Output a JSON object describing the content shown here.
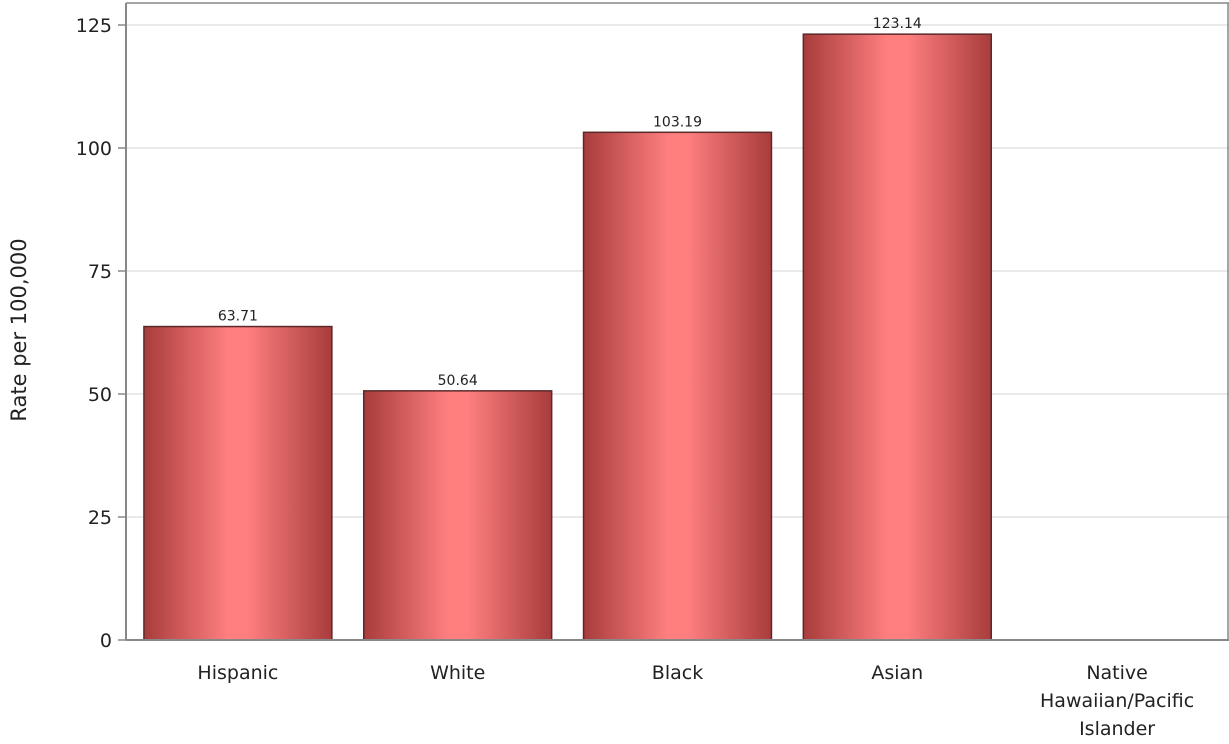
{
  "chart_data": {
    "type": "bar",
    "title": "",
    "xlabel": "",
    "ylabel": "Rate per 100,000",
    "ylim": [
      0,
      125
    ],
    "yticks": [
      0,
      25,
      50,
      75,
      100,
      125
    ],
    "grid": true,
    "categories": [
      [
        "Hispanic"
      ],
      [
        "White"
      ],
      [
        "Black"
      ],
      [
        "Asian"
      ],
      [
        "Native",
        "Hawaiian/Pacific",
        "Islander"
      ]
    ],
    "values": [
      63.71,
      50.64,
      103.19,
      123.14,
      null
    ],
    "value_labels": [
      "63.71",
      "50.64",
      "103.19",
      "123.14",
      ""
    ],
    "colors": {
      "bar_center": "#ff7f7f",
      "bar_edge": "#a83c3c",
      "bar_outline": "#5a2a2a",
      "grid": "#e3e3e3",
      "axis": "#888888"
    }
  }
}
